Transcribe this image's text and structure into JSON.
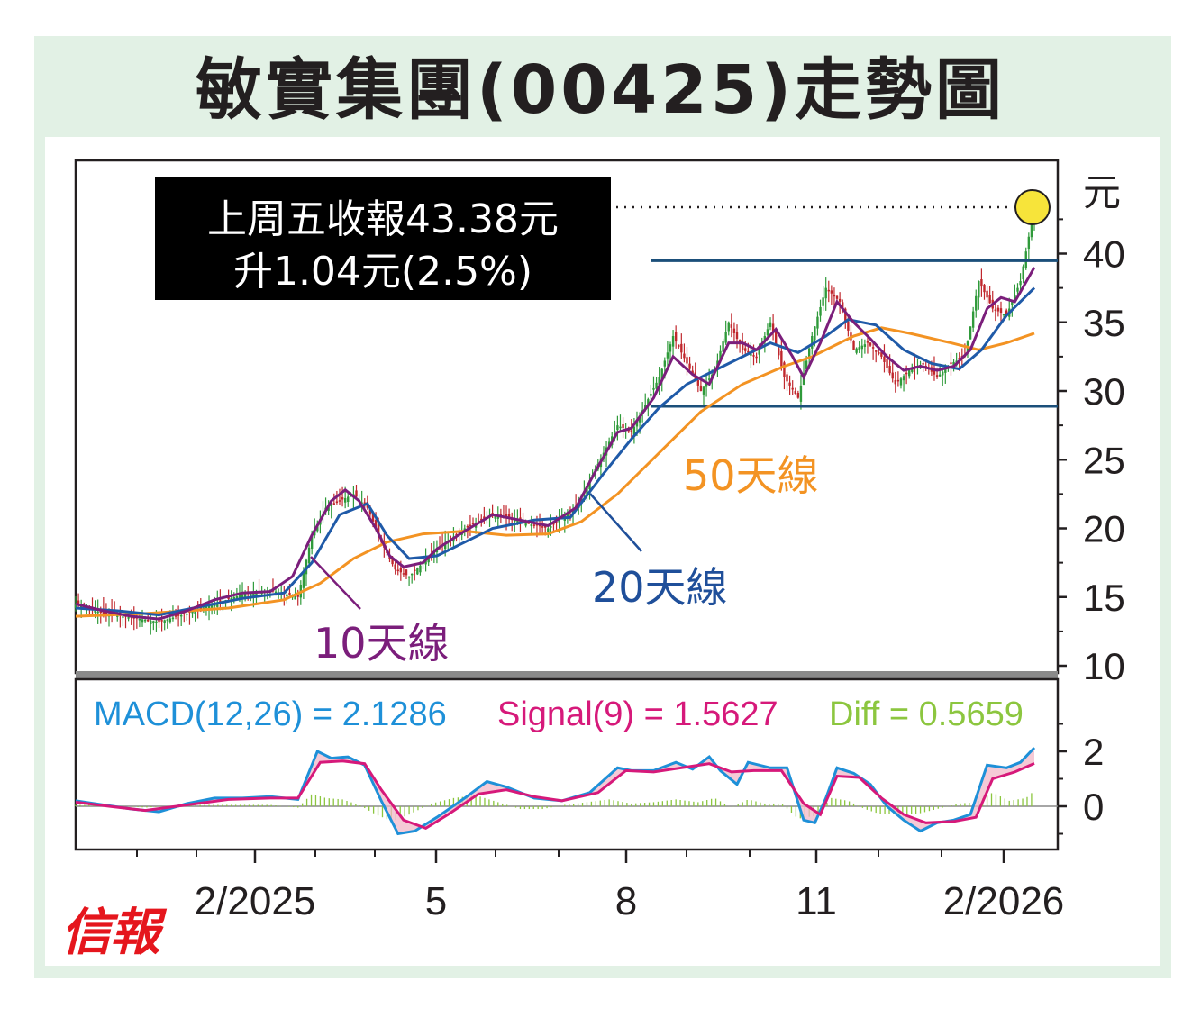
{
  "title": "敏實集團(00425)走勢圖",
  "logo": "信報",
  "chart_data": [
    {
      "type": "line",
      "subtype": "candlestick-with-moving-averages",
      "y_unit": "元",
      "ylim": [
        10,
        46
      ],
      "y_ticks": [
        "40",
        "35",
        "30",
        "25",
        "20",
        "15",
        "10"
      ],
      "x_ticks": [
        "2/2025",
        "5",
        "8",
        "11",
        "2/2026"
      ],
      "annotation": {
        "line1": "上周五收報43.38元",
        "line2": "升1.04元(2.5%)",
        "close_value": 43.38
      },
      "resistance": 39.5,
      "support": 28.9,
      "series": [
        {
          "name": "10天線",
          "color": "#7b1e7b"
        },
        {
          "name": "20天線",
          "color": "#1f4f9a"
        },
        {
          "name": "50天線",
          "color": "#f39323"
        }
      ],
      "price_path": [
        [
          0,
          14.5
        ],
        [
          10,
          13.8
        ],
        [
          20,
          13.5
        ],
        [
          30,
          13.2
        ],
        [
          40,
          13.8
        ],
        [
          50,
          14.5
        ],
        [
          60,
          15.2
        ],
        [
          70,
          15.5
        ],
        [
          80,
          15.0
        ],
        [
          85,
          19.5
        ],
        [
          90,
          21.5
        ],
        [
          95,
          22.0
        ],
        [
          100,
          22.5
        ],
        [
          105,
          21.5
        ],
        [
          110,
          19.0
        ],
        [
          115,
          17.0
        ],
        [
          120,
          16.5
        ],
        [
          125,
          17.5
        ],
        [
          130,
          18.5
        ],
        [
          140,
          20.0
        ],
        [
          150,
          21.0
        ],
        [
          160,
          20.5
        ],
        [
          170,
          20.0
        ],
        [
          180,
          21.5
        ],
        [
          190,
          25.5
        ],
        [
          195,
          27.5
        ],
        [
          200,
          27.0
        ],
        [
          210,
          31.0
        ],
        [
          215,
          34.0
        ],
        [
          220,
          32.0
        ],
        [
          225,
          30.0
        ],
        [
          230,
          31.5
        ],
        [
          235,
          35.0
        ],
        [
          240,
          33.0
        ],
        [
          245,
          32.5
        ],
        [
          250,
          35.0
        ],
        [
          255,
          31.0
        ],
        [
          260,
          29.5
        ],
        [
          265,
          34.0
        ],
        [
          270,
          37.5
        ],
        [
          275,
          36.5
        ],
        [
          280,
          33.0
        ],
        [
          285,
          33.5
        ],
        [
          290,
          32.5
        ],
        [
          295,
          30.5
        ],
        [
          300,
          31.5
        ],
        [
          305,
          32.0
        ],
        [
          310,
          31.0
        ],
        [
          315,
          32.0
        ],
        [
          320,
          32.5
        ],
        [
          325,
          38.0
        ],
        [
          330,
          36.0
        ],
        [
          335,
          35.5
        ],
        [
          340,
          38.0
        ],
        [
          345,
          43.38
        ]
      ],
      "ma10_path": [
        [
          0,
          14.5
        ],
        [
          10,
          14.0
        ],
        [
          20,
          13.6
        ],
        [
          30,
          13.4
        ],
        [
          40,
          14.0
        ],
        [
          50,
          14.8
        ],
        [
          60,
          15.3
        ],
        [
          70,
          15.4
        ],
        [
          78,
          16.5
        ],
        [
          85,
          19.5
        ],
        [
          92,
          22.0
        ],
        [
          97,
          22.8
        ],
        [
          102,
          22.0
        ],
        [
          108,
          20.0
        ],
        [
          113,
          18.0
        ],
        [
          118,
          17.2
        ],
        [
          125,
          17.5
        ],
        [
          130,
          18.5
        ],
        [
          140,
          19.8
        ],
        [
          150,
          21.0
        ],
        [
          160,
          20.6
        ],
        [
          170,
          20.2
        ],
        [
          180,
          21.5
        ],
        [
          188,
          24.5
        ],
        [
          195,
          27.0
        ],
        [
          200,
          27.3
        ],
        [
          208,
          29.5
        ],
        [
          215,
          32.5
        ],
        [
          222,
          31.2
        ],
        [
          228,
          30.5
        ],
        [
          235,
          33.5
        ],
        [
          240,
          33.5
        ],
        [
          245,
          33.0
        ],
        [
          252,
          34.5
        ],
        [
          258,
          32.5
        ],
        [
          262,
          31.0
        ],
        [
          268,
          33.5
        ],
        [
          274,
          36.5
        ],
        [
          280,
          35.0
        ],
        [
          286,
          33.8
        ],
        [
          292,
          32.5
        ],
        [
          298,
          31.5
        ],
        [
          304,
          31.8
        ],
        [
          310,
          31.5
        ],
        [
          316,
          31.8
        ],
        [
          322,
          33.0
        ],
        [
          328,
          36.0
        ],
        [
          333,
          36.8
        ],
        [
          338,
          36.5
        ],
        [
          345,
          39.0
        ]
      ],
      "ma20_path": [
        [
          0,
          14.2
        ],
        [
          15,
          14.0
        ],
        [
          30,
          13.7
        ],
        [
          45,
          14.3
        ],
        [
          60,
          14.9
        ],
        [
          75,
          15.3
        ],
        [
          85,
          17.5
        ],
        [
          95,
          21.0
        ],
        [
          105,
          21.8
        ],
        [
          112,
          19.5
        ],
        [
          120,
          17.8
        ],
        [
          130,
          18.0
        ],
        [
          140,
          19.0
        ],
        [
          150,
          20.0
        ],
        [
          165,
          20.6
        ],
        [
          178,
          20.8
        ],
        [
          190,
          24.0
        ],
        [
          200,
          26.5
        ],
        [
          210,
          28.8
        ],
        [
          220,
          30.5
        ],
        [
          230,
          31.5
        ],
        [
          240,
          32.5
        ],
        [
          250,
          33.5
        ],
        [
          260,
          32.8
        ],
        [
          270,
          34.0
        ],
        [
          278,
          35.2
        ],
        [
          288,
          34.8
        ],
        [
          298,
          33.0
        ],
        [
          308,
          32.0
        ],
        [
          318,
          31.6
        ],
        [
          326,
          33.0
        ],
        [
          335,
          35.5
        ],
        [
          345,
          37.5
        ]
      ],
      "ma50_path": [
        [
          0,
          13.6
        ],
        [
          25,
          13.8
        ],
        [
          55,
          14.2
        ],
        [
          75,
          14.8
        ],
        [
          88,
          16.0
        ],
        [
          100,
          17.8
        ],
        [
          112,
          19.0
        ],
        [
          125,
          19.6
        ],
        [
          140,
          19.8
        ],
        [
          155,
          19.5
        ],
        [
          170,
          19.6
        ],
        [
          182,
          20.5
        ],
        [
          195,
          22.5
        ],
        [
          210,
          25.5
        ],
        [
          225,
          28.5
        ],
        [
          240,
          30.5
        ],
        [
          255,
          31.8
        ],
        [
          265,
          32.5
        ],
        [
          280,
          34.0
        ],
        [
          290,
          34.6
        ],
        [
          300,
          34.2
        ],
        [
          315,
          33.5
        ],
        [
          325,
          33.0
        ],
        [
          335,
          33.5
        ],
        [
          345,
          34.2
        ]
      ]
    },
    {
      "type": "line",
      "subtype": "macd",
      "ylim": [
        -1.0,
        3.2
      ],
      "y_ticks": [
        "2",
        "0"
      ],
      "legend": {
        "macd_label": "MACD(12,26) = 2.1286",
        "signal_label": "Signal(9) = 1.5627",
        "diff_label": "Diff = 0.5659"
      },
      "macd_value": 2.1286,
      "signal_value": 1.5627,
      "diff_value": 0.5659,
      "colors": {
        "macd": "#1e90d8",
        "signal": "#d6197a",
        "diff": "#8cc63f"
      },
      "macd_path": [
        [
          0,
          0.2
        ],
        [
          10,
          0.05
        ],
        [
          20,
          -0.1
        ],
        [
          30,
          -0.2
        ],
        [
          40,
          0.1
        ],
        [
          50,
          0.3
        ],
        [
          60,
          0.3
        ],
        [
          70,
          0.35
        ],
        [
          80,
          0.25
        ],
        [
          87,
          2.0
        ],
        [
          92,
          1.75
        ],
        [
          98,
          1.8
        ],
        [
          104,
          1.5
        ],
        [
          110,
          0.2
        ],
        [
          116,
          -1.0
        ],
        [
          122,
          -0.9
        ],
        [
          130,
          -0.4
        ],
        [
          140,
          0.3
        ],
        [
          148,
          0.9
        ],
        [
          155,
          0.7
        ],
        [
          165,
          0.3
        ],
        [
          175,
          0.2
        ],
        [
          185,
          0.5
        ],
        [
          195,
          1.4
        ],
        [
          200,
          1.3
        ],
        [
          208,
          1.3
        ],
        [
          216,
          1.6
        ],
        [
          222,
          1.35
        ],
        [
          228,
          1.8
        ],
        [
          232,
          1.3
        ],
        [
          238,
          0.8
        ],
        [
          242,
          1.6
        ],
        [
          250,
          1.4
        ],
        [
          256,
          1.4
        ],
        [
          262,
          -0.5
        ],
        [
          266,
          -0.6
        ],
        [
          270,
          0.3
        ],
        [
          274,
          1.4
        ],
        [
          280,
          1.2
        ],
        [
          286,
          0.8
        ],
        [
          292,
          0.0
        ],
        [
          298,
          -0.5
        ],
        [
          304,
          -0.9
        ],
        [
          310,
          -0.6
        ],
        [
          316,
          -0.5
        ],
        [
          322,
          -0.3
        ],
        [
          328,
          1.5
        ],
        [
          335,
          1.4
        ],
        [
          340,
          1.6
        ],
        [
          345,
          2.13
        ]
      ],
      "signal_path": [
        [
          0,
          0.15
        ],
        [
          12,
          0.0
        ],
        [
          25,
          -0.15
        ],
        [
          40,
          0.05
        ],
        [
          55,
          0.25
        ],
        [
          70,
          0.3
        ],
        [
          80,
          0.3
        ],
        [
          88,
          1.6
        ],
        [
          96,
          1.65
        ],
        [
          104,
          1.55
        ],
        [
          110,
          0.6
        ],
        [
          118,
          -0.5
        ],
        [
          126,
          -0.8
        ],
        [
          134,
          -0.3
        ],
        [
          145,
          0.45
        ],
        [
          155,
          0.6
        ],
        [
          165,
          0.35
        ],
        [
          175,
          0.2
        ],
        [
          188,
          0.5
        ],
        [
          198,
          1.3
        ],
        [
          208,
          1.25
        ],
        [
          218,
          1.4
        ],
        [
          228,
          1.55
        ],
        [
          236,
          1.25
        ],
        [
          244,
          1.3
        ],
        [
          254,
          1.3
        ],
        [
          262,
          0.1
        ],
        [
          268,
          -0.3
        ],
        [
          274,
          1.1
        ],
        [
          282,
          1.05
        ],
        [
          290,
          0.3
        ],
        [
          298,
          -0.3
        ],
        [
          306,
          -0.6
        ],
        [
          316,
          -0.55
        ],
        [
          324,
          -0.4
        ],
        [
          330,
          1.0
        ],
        [
          338,
          1.25
        ],
        [
          345,
          1.56
        ]
      ],
      "diff_bars": [
        [
          0,
          0.05
        ],
        [
          12,
          0.05
        ],
        [
          25,
          -0.05
        ],
        [
          40,
          0.05
        ],
        [
          55,
          0.05
        ],
        [
          70,
          0.05
        ],
        [
          80,
          -0.05
        ],
        [
          85,
          0.45
        ],
        [
          90,
          0.3
        ],
        [
          96,
          0.25
        ],
        [
          102,
          0.05
        ],
        [
          108,
          -0.3
        ],
        [
          114,
          -0.55
        ],
        [
          120,
          -0.3
        ],
        [
          128,
          0.1
        ],
        [
          136,
          0.3
        ],
        [
          144,
          0.4
        ],
        [
          152,
          0.15
        ],
        [
          160,
          -0.1
        ],
        [
          168,
          -0.1
        ],
        [
          176,
          0.05
        ],
        [
          184,
          0.15
        ],
        [
          192,
          0.25
        ],
        [
          200,
          0.1
        ],
        [
          208,
          0.15
        ],
        [
          216,
          0.25
        ],
        [
          224,
          0.15
        ],
        [
          230,
          0.3
        ],
        [
          236,
          -0.05
        ],
        [
          242,
          0.25
        ],
        [
          248,
          0.1
        ],
        [
          254,
          0.1
        ],
        [
          260,
          -0.45
        ],
        [
          266,
          -0.35
        ],
        [
          272,
          0.3
        ],
        [
          278,
          0.2
        ],
        [
          284,
          -0.1
        ],
        [
          290,
          -0.3
        ],
        [
          296,
          -0.25
        ],
        [
          302,
          -0.3
        ],
        [
          310,
          -0.1
        ],
        [
          318,
          0.1
        ],
        [
          324,
          0.15
        ],
        [
          330,
          0.5
        ],
        [
          336,
          0.2
        ],
        [
          342,
          0.3
        ],
        [
          345,
          0.57
        ]
      ]
    }
  ]
}
